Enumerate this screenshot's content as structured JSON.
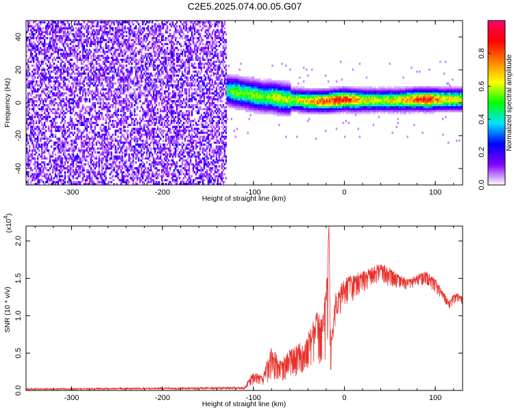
{
  "title": "C2E5.2025.074.00.05.G07",
  "chart_data": [
    {
      "type": "heatmap",
      "xlabel": "Height of straight line (km)",
      "ylabel": "Frequency (Hz)",
      "xlim": [
        -350,
        130
      ],
      "ylim": [
        -50,
        50
      ],
      "xticks": [
        "-300",
        "-200",
        "-100",
        "0",
        "100"
      ],
      "xtick_values": [
        -300,
        -200,
        -100,
        0,
        100
      ],
      "yticks": [
        "-40",
        "-20",
        "0",
        "20",
        "40"
      ],
      "ytick_values": [
        -40,
        -20,
        0,
        20,
        40
      ],
      "colorbar": {
        "label": "Normalized spectral amplitude",
        "range": [
          0,
          1
        ],
        "ticks": [
          "0.0",
          "0.2",
          "0.4",
          "0.6",
          "0.8"
        ],
        "tick_values": [
          0.0,
          0.2,
          0.4,
          0.6,
          0.8
        ],
        "colormap": [
          "#ffffff",
          "#8000ff",
          "#0000ff",
          "#00e5ff",
          "#00ff00",
          "#ffff00",
          "#ff8000",
          "#ff0000",
          "#ff0066"
        ]
      },
      "noise_region": {
        "x_from": -350,
        "x_to": -130,
        "amplitude": [
          0.0,
          0.25
        ]
      },
      "signal_ridge": [
        {
          "height": -130,
          "freq": 7,
          "amplitude": 0.45
        },
        {
          "height": -120,
          "freq": 6,
          "amplitude": 0.6
        },
        {
          "height": -110,
          "freq": 5,
          "amplitude": 0.55
        },
        {
          "height": -100,
          "freq": 4,
          "amplitude": 0.6
        },
        {
          "height": -90,
          "freq": 3,
          "amplitude": 0.55
        },
        {
          "height": -80,
          "freq": 3,
          "amplitude": 0.6
        },
        {
          "height": -70,
          "freq": 2,
          "amplitude": 0.65
        },
        {
          "height": -60,
          "freq": 1.5,
          "amplitude": 0.6
        },
        {
          "height": -50,
          "freq": 1,
          "amplitude": 0.7
        },
        {
          "height": -40,
          "freq": 0.5,
          "amplitude": 0.75
        },
        {
          "height": -30,
          "freq": 0.5,
          "amplitude": 0.8
        },
        {
          "height": -20,
          "freq": 0.5,
          "amplitude": 0.85
        },
        {
          "height": -10,
          "freq": 1,
          "amplitude": 0.9
        },
        {
          "height": 0,
          "freq": 1.5,
          "amplitude": 0.9
        },
        {
          "height": 10,
          "freq": 1,
          "amplitude": 0.85
        },
        {
          "height": 20,
          "freq": 1,
          "amplitude": 0.7
        },
        {
          "height": 40,
          "freq": 1,
          "amplitude": 0.65
        },
        {
          "height": 60,
          "freq": 1,
          "amplitude": 0.7
        },
        {
          "height": 80,
          "freq": 1.5,
          "amplitude": 0.85
        },
        {
          "height": 90,
          "freq": 1.5,
          "amplitude": 0.95
        },
        {
          "height": 100,
          "freq": 1.5,
          "amplitude": 0.8
        },
        {
          "height": 110,
          "freq": 1.5,
          "amplitude": 0.7
        },
        {
          "height": 130,
          "freq": 1.5,
          "amplitude": 0.65
        }
      ]
    },
    {
      "type": "line",
      "xlabel": "Height of straight line (km)",
      "ylabel": "SNR (10 * v/v)",
      "y_multiplier_label": "(x10",
      "y_multiplier_exp": "4",
      "xlim": [
        -350,
        130
      ],
      "ylim": [
        0,
        2.2
      ],
      "xticks": [
        "-300",
        "-200",
        "-100",
        "0",
        "100"
      ],
      "xtick_values": [
        -300,
        -200,
        -100,
        0,
        100
      ],
      "yticks": [
        "0.0",
        "0.5",
        "1.0",
        "1.5",
        "2.0"
      ],
      "ytick_values": [
        0.0,
        0.5,
        1.0,
        1.5,
        2.0
      ],
      "color": "#e8302a",
      "envelope": {
        "x": [
          -350,
          -300,
          -200,
          -110,
          -100,
          -90,
          -80,
          -70,
          -60,
          -50,
          -45,
          -40,
          -35,
          -30,
          -25,
          -20,
          -17,
          -15,
          -10,
          0,
          10,
          20,
          30,
          40,
          50,
          60,
          70,
          80,
          90,
          100,
          110,
          115,
          120,
          125,
          130
        ],
        "upper": [
          0.03,
          0.03,
          0.04,
          0.05,
          0.25,
          0.2,
          0.6,
          0.4,
          0.55,
          0.65,
          0.6,
          0.8,
          0.9,
          1.1,
          0.95,
          1.4,
          2.2,
          0.6,
          1.3,
          1.5,
          1.55,
          1.6,
          1.65,
          1.7,
          1.65,
          1.55,
          1.5,
          1.55,
          1.6,
          1.5,
          1.3,
          1.2,
          1.3,
          1.3,
          1.25
        ],
        "lower": [
          0.0,
          0.0,
          0.0,
          0.0,
          0.0,
          0.0,
          0.0,
          0.02,
          0.05,
          0.05,
          0.1,
          0.1,
          0.2,
          0.15,
          0.1,
          0.1,
          0.3,
          0.1,
          0.7,
          1.0,
          1.1,
          1.2,
          1.3,
          1.35,
          1.3,
          1.3,
          1.3,
          1.35,
          1.35,
          1.25,
          1.1,
          1.05,
          1.1,
          1.15,
          1.1
        ]
      }
    }
  ]
}
